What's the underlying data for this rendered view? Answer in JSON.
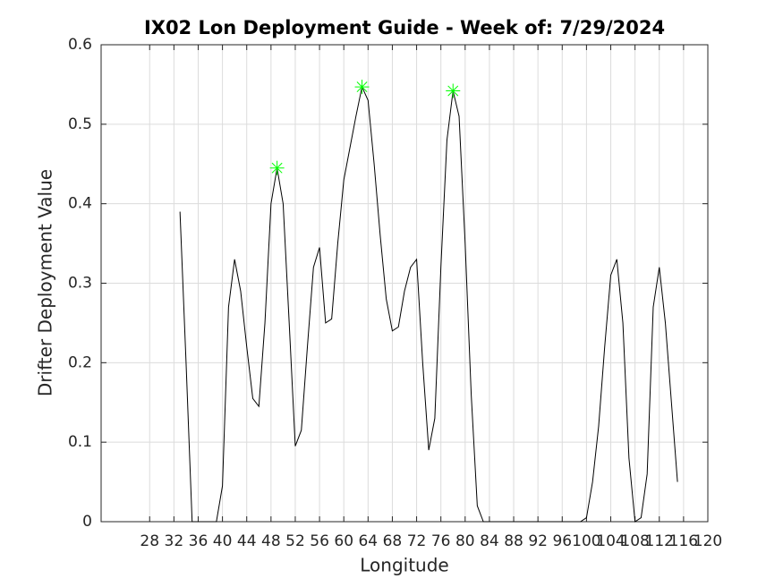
{
  "chart_data": {
    "type": "line",
    "title": "IX02 Lon Deployment Guide - Week of: 7/29/2024",
    "xlabel": "Longitude",
    "ylabel": "Drifter Deployment Value",
    "x": [
      33,
      34,
      35,
      36,
      37,
      38,
      39,
      40,
      41,
      42,
      43,
      44,
      45,
      46,
      47,
      48,
      49,
      50,
      51,
      52,
      53,
      54,
      55,
      56,
      57,
      58,
      59,
      60,
      61,
      62,
      63,
      64,
      65,
      66,
      67,
      68,
      69,
      70,
      71,
      72,
      73,
      74,
      75,
      76,
      77,
      78,
      79,
      80,
      81,
      82,
      83,
      84,
      85,
      86,
      87,
      88,
      89,
      90,
      91,
      92,
      93,
      94,
      95,
      96,
      97,
      98,
      99,
      100,
      101,
      102,
      103,
      104,
      105,
      106,
      107,
      108,
      109,
      110,
      111,
      112,
      113,
      114,
      115
    ],
    "series": [
      {
        "color": "#000000",
        "values": [
          0.39,
          0.2,
          0,
          0,
          0,
          0,
          0,
          0.045,
          0.27,
          0.33,
          0.29,
          0.22,
          0.155,
          0.145,
          0.25,
          0.4,
          0.445,
          0.4,
          0.25,
          0.095,
          0.115,
          0.22,
          0.32,
          0.345,
          0.25,
          0.255,
          0.35,
          0.43,
          0.47,
          0.51,
          0.547,
          0.53,
          0.45,
          0.36,
          0.28,
          0.24,
          0.245,
          0.29,
          0.32,
          0.33,
          0.2,
          0.09,
          0.13,
          0.32,
          0.48,
          0.542,
          0.51,
          0.35,
          0.16,
          0.02,
          0,
          0,
          0,
          0,
          0,
          0,
          0,
          0,
          0,
          0,
          0,
          0,
          0,
          0,
          0,
          0,
          0,
          0.005,
          0.05,
          0.12,
          0.22,
          0.31,
          0.33,
          0.25,
          0.08,
          0,
          0.005,
          0.06,
          0.27,
          0.32,
          0.25,
          0.15,
          0.05
        ]
      },
      {
        "color": "#00ff00",
        "marker": "asterisk",
        "x": [
          49,
          63,
          78
        ],
        "values": [
          0.445,
          0.547,
          0.542
        ]
      }
    ],
    "xlim": [
      20,
      120
    ],
    "xticks": [
      28,
      32,
      36,
      40,
      44,
      48,
      52,
      56,
      60,
      64,
      68,
      72,
      76,
      80,
      84,
      88,
      92,
      96,
      100,
      104,
      108,
      112,
      116,
      120
    ],
    "ylim": [
      0,
      0.6
    ],
    "yticks": [
      0,
      0.1,
      0.2,
      0.3,
      0.4,
      0.5,
      0.6
    ],
    "grid": true
  }
}
